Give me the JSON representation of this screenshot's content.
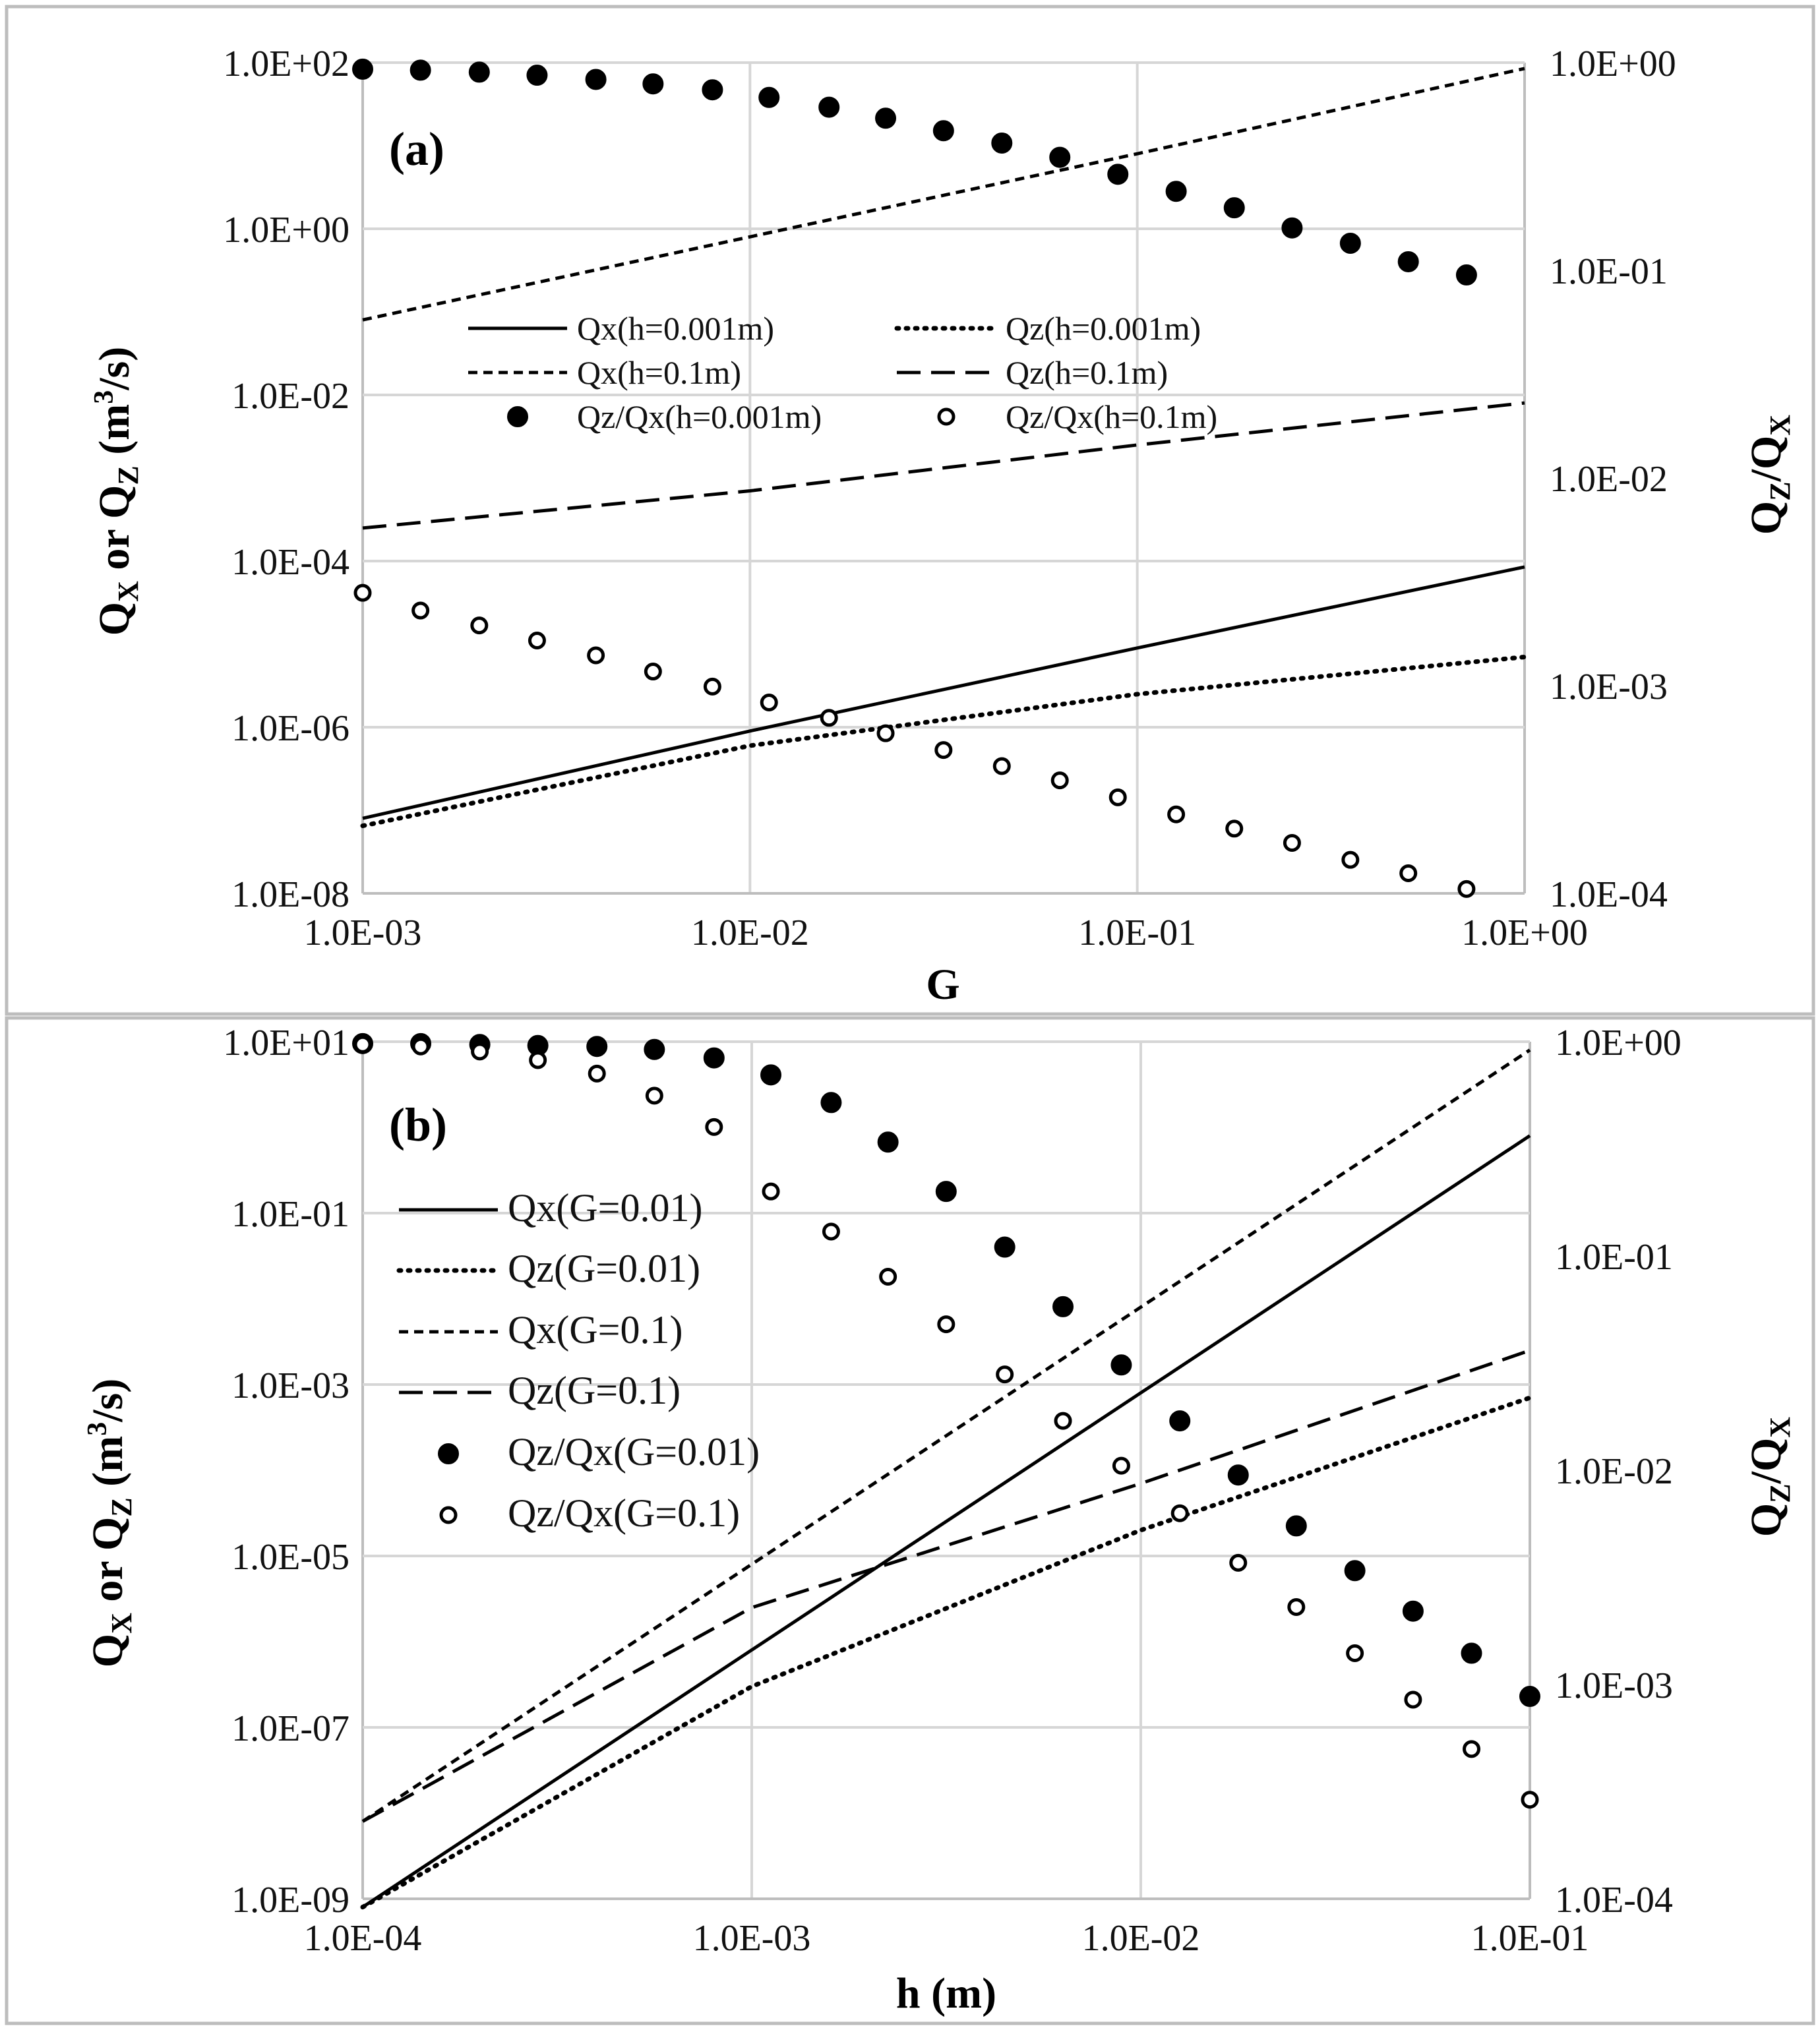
{
  "chart_data": [
    {
      "panel": "(a)",
      "type": "scatter",
      "xlabel": "G",
      "ylabel": "QX or QZ (m3/s)",
      "ylabel_right": "QZ/QX",
      "xlim": [
        0.001,
        1
      ],
      "ylim": [
        1e-08,
        100
      ],
      "ylim_right": [
        0.0001,
        1
      ],
      "xscale": "log",
      "yscale": "log",
      "x_ticks": [
        "1.0E-03",
        "1.0E-02",
        "1.0E-01",
        "1.0E+00"
      ],
      "y_ticks": [
        "1.0E-08",
        "1.0E-06",
        "1.0E-04",
        "1.0E-02",
        "1.0E+00",
        "1.0E+02"
      ],
      "y_right_ticks": [
        "1.0E-04",
        "1.0E-03",
        "1.0E-02",
        "1.0E-01",
        "1.0E+00"
      ],
      "grid": true,
      "legend_position": "center-left",
      "series": [
        {
          "name": "Qx(h=0.001m)",
          "axis": "left",
          "style": "solid",
          "x": [
            0.001,
            0.01,
            0.1,
            1
          ],
          "y": [
            8e-08,
            9e-07,
            9e-06,
            8.5e-05
          ]
        },
        {
          "name": "Qz(h=0.001m)",
          "axis": "left",
          "style": "dotted",
          "x": [
            0.001,
            0.01,
            0.1,
            1
          ],
          "y": [
            6.5e-08,
            6e-07,
            2.5e-06,
            7e-06
          ]
        },
        {
          "name": "Qx(h=0.1m)",
          "axis": "left",
          "style": "short-dash",
          "x": [
            0.001,
            0.01,
            0.1,
            1
          ],
          "y": [
            0.08,
            0.8,
            8,
            85
          ]
        },
        {
          "name": "Qz(h=0.1m)",
          "axis": "left",
          "style": "long-dash",
          "x": [
            0.001,
            0.01,
            0.1,
            1
          ],
          "y": [
            0.00025,
            0.0007,
            0.0025,
            0.008
          ]
        },
        {
          "name": "Qz/Qx(h=0.001m)",
          "axis": "right",
          "marker": "filled-circle",
          "x": [
            0.001,
            0.00141,
            0.002,
            0.00282,
            0.004,
            0.00562,
            0.008,
            0.0112,
            0.016,
            0.0224,
            0.0316,
            0.0447,
            0.0631,
            0.0891,
            0.126,
            0.178,
            0.251,
            0.355,
            0.501,
            0.708
          ],
          "y": [
            0.93,
            0.92,
            0.9,
            0.87,
            0.83,
            0.79,
            0.74,
            0.68,
            0.61,
            0.54,
            0.47,
            0.41,
            0.35,
            0.29,
            0.24,
            0.2,
            0.16,
            0.135,
            0.11,
            0.095
          ]
        },
        {
          "name": "Qz/Qx(h=0.1m)",
          "axis": "right",
          "marker": "open-circle",
          "x": [
            0.001,
            0.00141,
            0.002,
            0.00282,
            0.004,
            0.00562,
            0.008,
            0.0112,
            0.016,
            0.0224,
            0.0316,
            0.0447,
            0.0631,
            0.0891,
            0.126,
            0.178,
            0.251,
            0.355,
            0.501,
            0.708
          ],
          "y": [
            0.0028,
            0.0023,
            0.00195,
            0.00165,
            0.0014,
            0.00117,
            0.00099,
            0.00083,
            0.0007,
            0.00059,
            0.00049,
            0.00041,
            0.00035,
            0.00029,
            0.00024,
            0.000205,
            0.000175,
            0.000145,
            0.000125,
            0.000105
          ]
        }
      ]
    },
    {
      "panel": "(b)",
      "type": "scatter",
      "xlabel": "h (m)",
      "ylabel": "QX or QZ (m3/s)",
      "ylabel_right": "QZ/QX",
      "xlim": [
        0.0001,
        0.1
      ],
      "ylim": [
        1e-09,
        10
      ],
      "ylim_right": [
        0.0001,
        1
      ],
      "xscale": "log",
      "yscale": "log",
      "x_ticks": [
        "1.0E-04",
        "1.0E-03",
        "1.0E-02",
        "1.0E-01"
      ],
      "y_ticks": [
        "1.0E-09",
        "1.0E-07",
        "1.0E-05",
        "1.0E-03",
        "1.0E-01",
        "1.0E+01"
      ],
      "y_right_ticks": [
        "1.0E-04",
        "1.0E-03",
        "1.0E-02",
        "1.0E-01",
        "1.0E+00"
      ],
      "grid": true,
      "legend_position": "left",
      "series": [
        {
          "name": "Qx(G=0.01)",
          "axis": "left",
          "style": "solid",
          "x": [
            0.0001,
            0.001,
            0.01,
            0.1
          ],
          "y": [
            8e-10,
            8e-07,
            0.0008,
            0.8
          ]
        },
        {
          "name": "Qz(G=0.01)",
          "axis": "left",
          "style": "dotted",
          "x": [
            0.0001,
            0.001,
            0.01,
            0.1
          ],
          "y": [
            8e-10,
            3e-07,
            2e-05,
            0.0007
          ]
        },
        {
          "name": "Qx(G=0.1)",
          "axis": "left",
          "style": "short-dash",
          "x": [
            0.0001,
            0.001,
            0.01,
            0.1
          ],
          "y": [
            8e-09,
            8e-06,
            0.008,
            8
          ]
        },
        {
          "name": "Qz(G=0.1)",
          "axis": "left",
          "style": "long-dash",
          "x": [
            0.0001,
            0.001,
            0.01,
            0.1
          ],
          "y": [
            8e-09,
            2.5e-06,
            7e-05,
            0.0025
          ]
        },
        {
          "name": "Qz/Qx(G=0.01)",
          "axis": "right",
          "marker": "filled-circle",
          "x": [
            0.0001,
            0.000141,
            0.0002,
            0.000282,
            0.0004,
            0.000562,
            0.0008,
            0.00112,
            0.0016,
            0.00224,
            0.00316,
            0.00447,
            0.00631,
            0.00891,
            0.0126,
            0.0178,
            0.0251,
            0.0355,
            0.0501,
            0.0708,
            0.1
          ],
          "y": [
            0.98,
            0.98,
            0.97,
            0.96,
            0.95,
            0.92,
            0.84,
            0.7,
            0.52,
            0.34,
            0.2,
            0.11,
            0.058,
            0.031,
            0.017,
            0.0095,
            0.0055,
            0.0034,
            0.0022,
            0.0014,
            0.00088
          ]
        },
        {
          "name": "Qz/Qx(G=0.1)",
          "axis": "right",
          "marker": "open-circle",
          "x": [
            0.0001,
            0.000141,
            0.0002,
            0.000282,
            0.0004,
            0.000562,
            0.0008,
            0.00112,
            0.0016,
            0.00224,
            0.00316,
            0.00447,
            0.00631,
            0.00891,
            0.0126,
            0.0178,
            0.0251,
            0.0355,
            0.0501,
            0.0708,
            0.1
          ],
          "y": [
            0.97,
            0.95,
            0.9,
            0.82,
            0.71,
            0.56,
            0.4,
            0.2,
            0.13,
            0.08,
            0.048,
            0.028,
            0.017,
            0.0105,
            0.0063,
            0.0037,
            0.0023,
            0.0014,
            0.00085,
            0.0005,
            0.00029
          ]
        }
      ]
    }
  ]
}
